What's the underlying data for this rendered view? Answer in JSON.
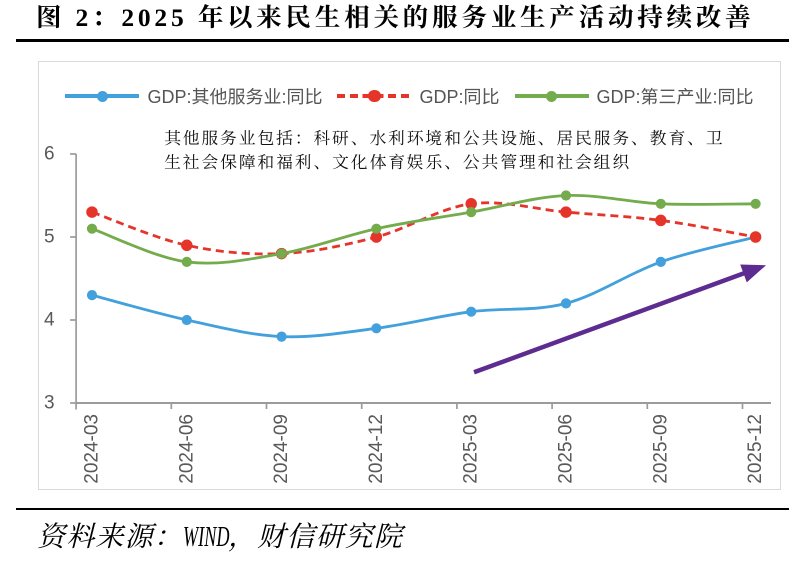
{
  "title": "图 2：2025 年以来民生相关的服务业生产活动持续改善",
  "note": {
    "lines": [
      "其他服务业包括：科研、水利环境和公共设施、居民服务、教育、卫",
      "生社会保障和福利、文化体育娱乐、公共管理和社会组织"
    ]
  },
  "source": "资料来源：WIND，财信研究院",
  "chart_data": {
    "type": "line",
    "categories": [
      "2024-03",
      "2024-06",
      "2024-09",
      "2024-12",
      "2025-03",
      "2025-06",
      "2025-09",
      "2025-12"
    ],
    "series": [
      {
        "name": "GDP:其他服务业:同比",
        "values": [
          4.3,
          4.0,
          3.8,
          3.9,
          4.1,
          4.2,
          4.7,
          5.0
        ],
        "color": "#42A0DC",
        "dash": false
      },
      {
        "name": "GDP:同比",
        "values": [
          5.3,
          4.9,
          4.8,
          5.0,
          5.4,
          5.3,
          5.2,
          5.0
        ],
        "color": "#E5352B",
        "dash": true
      },
      {
        "name": "GDP:第三产业:同比",
        "values": [
          5.1,
          4.7,
          4.8,
          5.1,
          5.3,
          5.5,
          5.4,
          5.4
        ],
        "color": "#74AB4D",
        "dash": false
      }
    ],
    "ylim": [
      3,
      6
    ],
    "yticks": [
      3,
      4,
      5,
      6
    ],
    "smooth": true,
    "grid": false,
    "legend_position": "top",
    "annotation_arrow": {
      "from_x": 4.03,
      "from_y": 3.37,
      "to_x": 7.11,
      "to_y": 4.66,
      "color": "#5E2C90"
    }
  },
  "colors": {
    "axis_line": "#9B9B9B",
    "axis_label": "#595959",
    "legend_label": "#555555",
    "chart_border": "#D9D9D9",
    "rule": "#000000"
  }
}
